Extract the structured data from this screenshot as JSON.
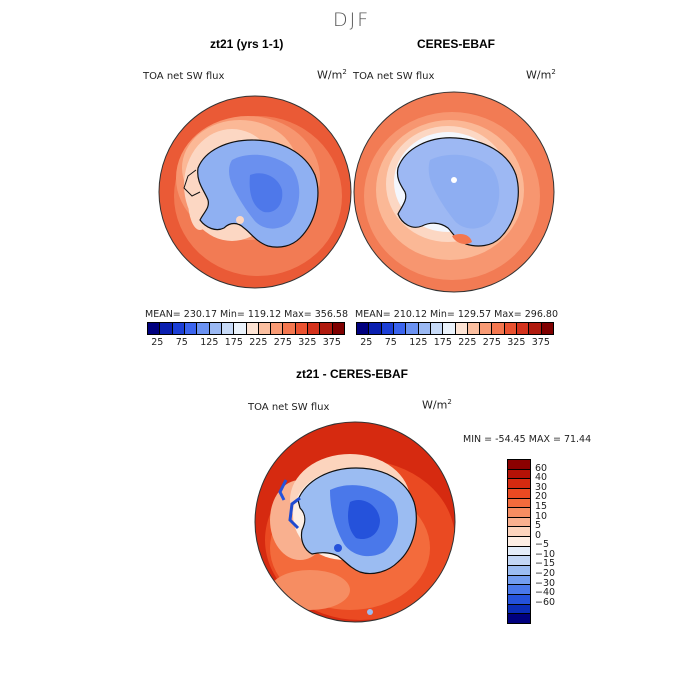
{
  "figure": {
    "season": "DJF"
  },
  "panels": [
    {
      "title": "zt21 (yrs 1-1)",
      "variable": "TOA net SW flux",
      "units": "W/m",
      "units_exp": "2",
      "stats": "MEAN= 230.17    Min= 119.12    Max= 356.58"
    },
    {
      "title": "CERES-EBAF",
      "variable": "TOA net SW flux",
      "units": "W/m",
      "units_exp": "2",
      "stats": "MEAN= 210.12    Min= 129.57    Max= 296.80"
    }
  ],
  "diff": {
    "title": "zt21 - CERES-EBAF",
    "variable": "TOA net SW flux",
    "units": "W/m",
    "units_exp": "2",
    "stats": "MIN = -54.45  MAX =  71.44"
  },
  "colorbar_abs": {
    "ticks": [
      "25",
      "75",
      "125",
      "175",
      "225",
      "275",
      "325",
      "375"
    ],
    "colors": [
      "#00007f",
      "#0a1fb0",
      "#1c3fd6",
      "#3b64ee",
      "#6b92f2",
      "#9bb9f4",
      "#c7daf7",
      "#eaf2fb",
      "#fde3d3",
      "#fbbfa0",
      "#f89a74",
      "#f4774f",
      "#ea5230",
      "#d4321c",
      "#b01a0e",
      "#7f0000"
    ]
  },
  "colorbar_diff": {
    "labels": [
      "60",
      "40",
      "30",
      "20",
      "15",
      "10",
      "5",
      "0",
      "−5",
      "−10",
      "−15",
      "−20",
      "−30",
      "−40",
      "−60"
    ],
    "colors": [
      "#8b0000",
      "#b41206",
      "#d62a10",
      "#ea4a22",
      "#f36b3c",
      "#f68d62",
      "#f9b08f",
      "#fcd4bd",
      "#fdeee4",
      "#e4edf9",
      "#c2d6f5",
      "#9bbcf2",
      "#739df0",
      "#4a78ea",
      "#2552db",
      "#0b2db8",
      "#00007f"
    ]
  }
}
